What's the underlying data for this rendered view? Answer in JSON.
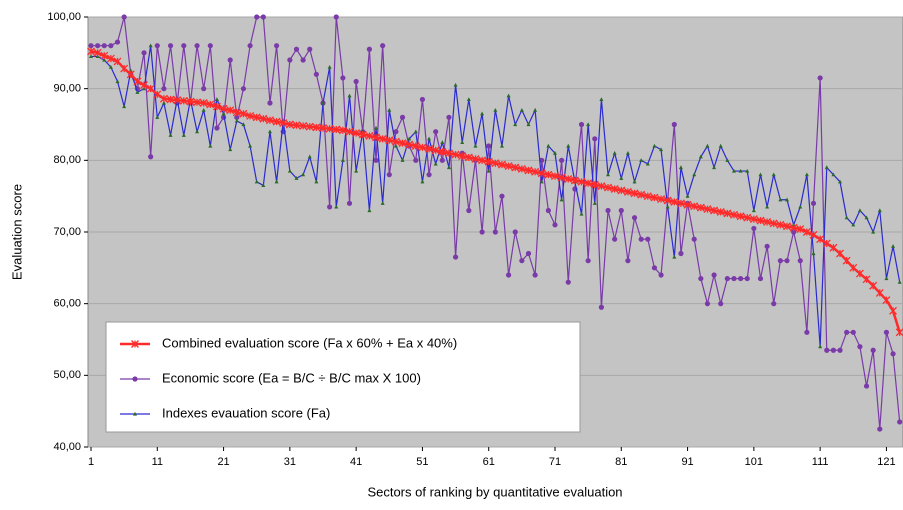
{
  "chart_data": {
    "type": "line",
    "x_label": "Sectors of ranking by quantitative evaluation",
    "y_label": "Evaluation score",
    "x": [
      1,
      2,
      3,
      4,
      5,
      6,
      7,
      8,
      9,
      10,
      11,
      12,
      13,
      14,
      15,
      16,
      17,
      18,
      19,
      20,
      21,
      22,
      23,
      24,
      25,
      26,
      27,
      28,
      29,
      30,
      31,
      32,
      33,
      34,
      35,
      36,
      37,
      38,
      39,
      40,
      41,
      42,
      43,
      44,
      45,
      46,
      47,
      48,
      49,
      50,
      51,
      52,
      53,
      54,
      55,
      56,
      57,
      58,
      59,
      60,
      61,
      62,
      63,
      64,
      65,
      66,
      67,
      68,
      69,
      70,
      71,
      72,
      73,
      74,
      75,
      76,
      77,
      78,
      79,
      80,
      81,
      82,
      83,
      84,
      85,
      86,
      87,
      88,
      89,
      90,
      91,
      92,
      93,
      94,
      95,
      96,
      97,
      98,
      99,
      100,
      101,
      102,
      103,
      104,
      105,
      106,
      107,
      108,
      109,
      110,
      111,
      112,
      113,
      114,
      115,
      116,
      117,
      118,
      119,
      120,
      121,
      122,
      123
    ],
    "xlim": [
      1,
      123.5
    ],
    "xticks": [
      1,
      11,
      21,
      31,
      41,
      51,
      61,
      71,
      81,
      91,
      101,
      111,
      121
    ],
    "ylim": [
      40,
      100
    ],
    "yticks": [
      {
        "value": 40,
        "label": "40,00"
      },
      {
        "value": 50,
        "label": "50,00"
      },
      {
        "value": 60,
        "label": "60,00"
      },
      {
        "value": 70,
        "label": "70,00"
      },
      {
        "value": 80,
        "label": "80,00"
      },
      {
        "value": 90,
        "label": "90,00"
      },
      {
        "value": 100,
        "label": "100,00"
      }
    ],
    "grid": true,
    "legend": "lower left",
    "series": [
      {
        "name": "Combined evaluation score (Fa x 60% + Ea x 40%)",
        "color": "#ff2a2a",
        "marker": "x",
        "values": [
          95.2,
          95.0,
          94.6,
          94.2,
          93.8,
          92.8,
          92.0,
          91.0,
          90.5,
          90.0,
          89.2,
          88.6,
          88.5,
          88.4,
          88.3,
          88.2,
          88.1,
          88.0,
          87.8,
          87.5,
          87.2,
          87.0,
          86.7,
          86.5,
          86.2,
          86.0,
          85.8,
          85.6,
          85.4,
          85.2,
          85.0,
          84.9,
          84.8,
          84.7,
          84.6,
          84.5,
          84.4,
          84.3,
          84.2,
          84.0,
          83.8,
          83.6,
          83.4,
          83.2,
          83.0,
          82.8,
          82.6,
          82.4,
          82.2,
          82.0,
          81.8,
          81.6,
          81.4,
          81.2,
          81.0,
          80.8,
          80.6,
          80.4,
          80.2,
          80.0,
          79.8,
          79.6,
          79.4,
          79.2,
          79.0,
          78.8,
          78.6,
          78.4,
          78.2,
          78.0,
          77.8,
          77.6,
          77.4,
          77.2,
          77.0,
          76.8,
          76.6,
          76.4,
          76.2,
          76.0,
          75.8,
          75.6,
          75.4,
          75.2,
          75.0,
          74.8,
          74.6,
          74.4,
          74.2,
          74.0,
          73.8,
          73.6,
          73.4,
          73.2,
          73.0,
          72.8,
          72.6,
          72.4,
          72.2,
          72.0,
          71.8,
          71.6,
          71.4,
          71.2,
          71.0,
          70.8,
          70.6,
          70.4,
          70.0,
          69.6,
          69.0,
          68.4,
          67.8,
          67.0,
          66.0,
          65.0,
          64.2,
          63.4,
          62.5,
          61.5,
          60.5,
          59.0,
          56.0
        ]
      },
      {
        "name": "Economic score (Ea = B/C ÷ B/C max X 100)",
        "color": "#7a3aa8",
        "marker": "circle",
        "values": [
          96,
          96,
          96,
          96,
          96.5,
          100,
          92,
          90,
          95,
          80.5,
          96,
          90,
          96,
          88,
          96,
          88,
          96,
          90,
          96,
          84.5,
          86,
          94,
          86,
          90,
          96,
          100,
          100,
          88,
          96,
          84,
          94,
          95.5,
          94,
          95.5,
          92,
          88,
          73.5,
          100,
          91.5,
          74,
          91,
          84,
          95.5,
          80,
          96,
          78,
          84,
          86,
          82,
          80,
          88.5,
          78,
          84,
          80,
          86,
          66.5,
          81,
          73,
          80,
          70,
          82,
          70,
          75,
          64,
          70,
          66,
          67,
          64,
          80,
          73,
          71,
          80,
          63,
          76,
          85,
          66,
          83,
          59.5,
          73,
          69,
          73,
          66,
          72,
          69,
          69,
          65,
          64,
          74.5,
          85,
          67,
          74,
          69,
          63.5,
          60,
          64,
          60,
          63.5,
          63.5,
          63.5,
          63.5,
          70.5,
          63.5,
          68,
          60,
          66,
          66,
          70,
          66,
          56,
          74,
          91.5,
          53.5,
          53.5,
          53.5,
          56,
          56,
          54,
          48.5,
          53.5,
          42.5,
          56,
          53,
          43.5
        ]
      },
      {
        "name": "Indexes evauation score (Fa)",
        "color": "#2a2ad0",
        "marker": "triangle",
        "values": [
          94.5,
          94.5,
          94,
          93,
          91,
          87.5,
          92.5,
          89.5,
          90,
          96,
          86,
          88,
          83.5,
          88.5,
          83.5,
          88.5,
          84,
          87,
          82,
          88.5,
          86.5,
          81.5,
          85.5,
          85,
          82,
          77,
          76.5,
          84,
          77,
          85.5,
          78.5,
          77.5,
          78,
          80.5,
          77,
          88,
          93,
          73.5,
          80,
          89,
          78.5,
          84,
          73,
          84.5,
          74,
          87,
          82,
          80,
          83,
          84,
          77,
          83,
          79.5,
          82.5,
          79,
          90.5,
          82.5,
          88.5,
          82,
          86.5,
          78.5,
          87,
          82,
          89,
          85,
          87,
          85,
          87,
          77,
          82,
          81,
          74.5,
          82,
          77,
          72.5,
          85,
          74,
          88.5,
          78,
          81,
          77.5,
          81,
          77,
          80,
          79.5,
          82,
          81.5,
          73.5,
          66.5,
          79,
          75,
          78,
          80.5,
          82,
          79,
          82,
          80,
          78.5,
          78.5,
          78.5,
          73,
          78,
          73.5,
          78,
          74.5,
          74.5,
          71,
          73.5,
          78,
          67,
          54,
          79,
          78,
          77,
          72,
          71,
          73,
          72,
          70,
          73,
          63.5,
          68,
          63
        ]
      }
    ]
  }
}
